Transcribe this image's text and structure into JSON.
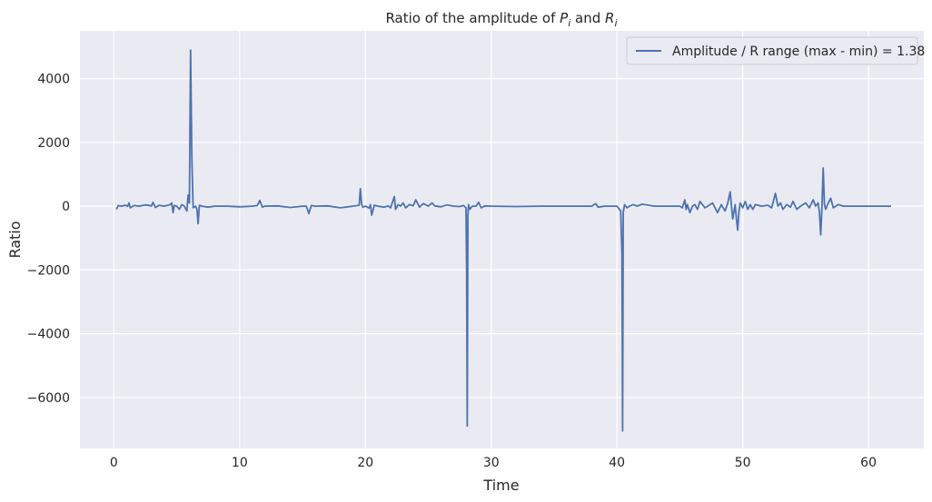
{
  "chart_data": {
    "type": "line",
    "title": {
      "prefix": "Ratio of the amplitude of ",
      "sym1": "P",
      "sub1": "i",
      "middle": " and ",
      "sym2": "R",
      "sub2": "i"
    },
    "xlabel": "Time",
    "ylabel": "Ratio",
    "xlim": [
      -2.7,
      64.4
    ],
    "ylim": [
      -7600,
      5500
    ],
    "xticks": [
      0,
      10,
      20,
      30,
      40,
      50,
      60
    ],
    "xtick_labels": [
      "0",
      "10",
      "20",
      "30",
      "40",
      "50",
      "60"
    ],
    "yticks": [
      -6000,
      -4000,
      -2000,
      0,
      2000,
      4000
    ],
    "ytick_labels": [
      "−6000",
      "−4000",
      "−2000",
      "0",
      "2000",
      "4000"
    ],
    "grid": true,
    "background_color": "#eaeaf2",
    "grid_color": "#ffffff",
    "legend_position": "top-right",
    "series": [
      {
        "name": "Amplitude / R range (max - min) = 1.38",
        "color": "#4c72b0",
        "x": [
          0.2,
          0.35,
          0.6,
          0.9,
          1.1,
          1.2,
          1.3,
          1.6,
          2.0,
          2.5,
          3.0,
          3.1,
          3.3,
          3.6,
          4.0,
          4.5,
          4.6,
          4.7,
          4.8,
          5.0,
          5.2,
          5.4,
          5.6,
          5.8,
          5.9,
          6.0,
          6.1,
          6.2,
          6.3,
          6.5,
          6.6,
          6.7,
          6.8,
          7.0,
          7.5,
          8.0,
          9.0,
          10.0,
          11.0,
          11.4,
          11.6,
          11.8,
          12.0,
          13.0,
          14.0,
          15.0,
          15.3,
          15.5,
          15.7,
          16.0,
          17.0,
          18.0,
          19.0,
          19.5,
          19.6,
          19.7,
          19.8,
          20.0,
          20.3,
          20.4,
          20.5,
          20.7,
          21.0,
          21.5,
          21.8,
          22.0,
          22.3,
          22.4,
          22.6,
          22.8,
          23.0,
          23.2,
          23.5,
          23.8,
          24.0,
          24.3,
          24.6,
          25.0,
          25.3,
          25.5,
          26.0,
          26.5,
          27.0,
          27.5,
          27.8,
          28.0,
          28.05,
          28.1,
          28.15,
          28.2,
          28.3,
          28.5,
          28.8,
          29.0,
          29.2,
          29.5,
          30.0,
          32.0,
          34.0,
          35.0,
          36.0,
          37.0,
          38.0,
          38.3,
          38.5,
          39.0,
          40.0,
          40.3,
          40.4,
          40.45,
          40.5,
          40.6,
          40.8,
          41.0,
          41.3,
          41.6,
          42.0,
          43.0,
          44.0,
          45.0,
          45.2,
          45.4,
          45.5,
          45.6,
          45.8,
          46.0,
          46.2,
          46.4,
          46.6,
          47.0,
          47.3,
          47.6,
          48.0,
          48.3,
          48.6,
          48.8,
          49.0,
          49.2,
          49.4,
          49.5,
          49.6,
          49.7,
          49.8,
          50.0,
          50.2,
          50.4,
          50.6,
          50.8,
          51.0,
          51.5,
          52.0,
          52.3,
          52.6,
          52.8,
          53.0,
          53.2,
          53.5,
          53.8,
          54.0,
          54.3,
          54.6,
          55.0,
          55.3,
          55.6,
          55.8,
          56.0,
          56.1,
          56.2,
          56.3,
          56.4,
          56.5,
          56.6,
          56.7,
          56.8,
          57.0,
          57.2,
          57.4,
          57.6,
          58.0,
          59.0,
          60.0,
          61.0,
          61.8
        ],
        "y": [
          -100,
          20,
          0,
          30,
          0,
          100,
          -50,
          20,
          0,
          40,
          10,
          120,
          -40,
          30,
          0,
          50,
          100,
          -200,
          20,
          0,
          -100,
          50,
          0,
          -150,
          350,
          100,
          4900,
          1500,
          -50,
          0,
          -100,
          -550,
          30,
          0,
          -30,
          0,
          0,
          -20,
          0,
          20,
          180,
          -30,
          0,
          10,
          -40,
          0,
          0,
          -230,
          20,
          0,
          10,
          -50,
          0,
          30,
          550,
          50,
          -30,
          0,
          -60,
          50,
          -280,
          30,
          0,
          -30,
          10,
          -50,
          300,
          -100,
          50,
          0,
          100,
          -50,
          50,
          10,
          200,
          -30,
          80,
          0,
          100,
          10,
          -20,
          40,
          0,
          -10,
          20,
          -50,
          -2000,
          -6900,
          -300,
          50,
          -100,
          0,
          0,
          120,
          -50,
          10,
          0,
          -10,
          0,
          0,
          0,
          0,
          0,
          80,
          -30,
          0,
          0,
          -150,
          -1500,
          -7050,
          -200,
          50,
          -50,
          0,
          50,
          0,
          60,
          0,
          0,
          0,
          -50,
          200,
          -100,
          50,
          -200,
          0,
          50,
          -100,
          150,
          -50,
          20,
          100,
          -200,
          50,
          -150,
          80,
          450,
          -400,
          50,
          -400,
          -750,
          -150,
          100,
          -50,
          150,
          -100,
          50,
          -100,
          50,
          0,
          30,
          -50,
          400,
          0,
          100,
          -100,
          50,
          -30,
          150,
          -100,
          0,
          100,
          -50,
          200,
          0,
          100,
          -200,
          -900,
          0,
          1200,
          50,
          -100,
          0,
          100,
          250,
          -50,
          0,
          50,
          0,
          0,
          0,
          0,
          0
        ]
      }
    ]
  }
}
